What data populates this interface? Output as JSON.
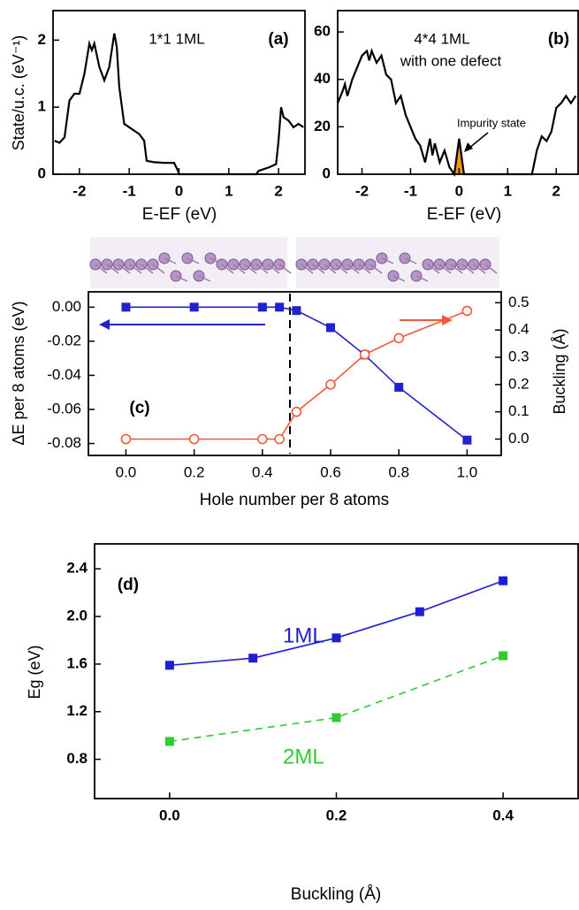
{
  "chart_data": [
    {
      "type": "line",
      "title": "1*1 1ML",
      "label": "(a)",
      "xlabel": "E-EF (eV)",
      "ylabel": "State/u.c. (eV⁻¹)",
      "xlim": [
        -2.53,
        2.53
      ],
      "ylim": [
        0,
        2.44
      ],
      "xticks": [
        -2,
        -1,
        0,
        1,
        2
      ],
      "yticks": [
        0,
        1,
        2
      ],
      "x": [
        -2.5,
        -2.4,
        -2.3,
        -2.2,
        -2.1,
        -2.0,
        -1.9,
        -1.8,
        -1.75,
        -1.7,
        -1.6,
        -1.5,
        -1.4,
        -1.3,
        -1.25,
        -1.2,
        -1.1,
        -1.0,
        -0.8,
        -0.7,
        -0.65,
        -0.5,
        -0.3,
        -0.1,
        -0.02,
        0,
        0.5,
        1.0,
        1.55,
        1.6,
        1.8,
        1.95,
        2.0,
        2.05,
        2.1,
        2.2,
        2.3,
        2.4,
        2.5
      ],
      "series": [
        {
          "color": "#000000",
          "values": [
            0.5,
            0.47,
            0.55,
            1.1,
            1.2,
            1.2,
            1.5,
            1.95,
            1.85,
            1.95,
            1.6,
            1.4,
            1.6,
            2.1,
            1.9,
            1.3,
            0.75,
            0.7,
            0.6,
            0.5,
            0.2,
            0.18,
            0.17,
            0.17,
            0.05,
            0,
            0,
            0,
            0,
            0.05,
            0.1,
            0.15,
            0.5,
            1.0,
            0.85,
            0.8,
            0.7,
            0.75,
            0.7
          ]
        }
      ]
    },
    {
      "type": "line",
      "title": "4*4 1ML",
      "subtitle": "with one defect",
      "label": "(b)",
      "annotation": "Impurity state",
      "xlabel": "E-EF (eV)",
      "xlim": [
        -2.5,
        2.45
      ],
      "ylim": [
        0,
        69
      ],
      "xticks": [
        -2,
        -1,
        0,
        1,
        2
      ],
      "yticks": [
        0,
        20,
        40,
        60
      ],
      "series": [
        {
          "color": "#f7941d",
          "fill": true,
          "x": [
            -0.1,
            0,
            0.1
          ],
          "values": [
            0,
            15,
            0
          ]
        },
        {
          "color": "#000000",
          "x": [
            -2.5,
            -2.4,
            -2.35,
            -2.3,
            -2.2,
            -2.1,
            -2.0,
            -1.9,
            -1.85,
            -1.8,
            -1.7,
            -1.6,
            -1.5,
            -1.4,
            -1.3,
            -1.2,
            -1.1,
            -1.0,
            -0.9,
            -0.8,
            -0.7,
            -0.6,
            -0.55,
            -0.5,
            -0.4,
            -0.3,
            -0.2,
            -0.1,
            0,
            0.1,
            0.2,
            1.5,
            1.6,
            1.7,
            1.8,
            1.9,
            2.0,
            2.1,
            2.2,
            2.3,
            2.4
          ],
          "values": [
            30,
            35,
            38,
            33,
            40,
            45,
            50,
            52,
            48,
            52,
            47,
            50,
            42,
            40,
            30,
            33,
            25,
            20,
            15,
            12,
            5,
            15,
            8,
            13,
            5,
            10,
            3,
            0,
            15,
            0,
            0,
            0,
            10,
            16,
            14,
            18,
            28,
            30,
            33,
            30,
            33
          ]
        }
      ]
    },
    {
      "type": "line",
      "label": "(c)",
      "xlabel": "Hole number per 8 atoms",
      "ylabel": "ΔE per 8 atoms (eV)",
      "y2label": "Buckling (Å)",
      "xlim": [
        -0.11,
        1.1
      ],
      "ylim": [
        -0.087,
        0.009
      ],
      "y2lim": [
        -0.06,
        0.54
      ],
      "xticks": [
        {
          "value": 0,
          "label": "0.0"
        },
        {
          "value": 0.2,
          "label": "0.2"
        },
        {
          "value": 0.4,
          "label": "0.4"
        },
        {
          "value": 0.6,
          "label": "0.6"
        },
        {
          "value": 0.8,
          "label": "0.8"
        },
        {
          "value": 1,
          "label": "1.0"
        }
      ],
      "yticks": [
        {
          "value": 0,
          "label": "0.00"
        },
        {
          "value": -0.02,
          "label": "-0.02"
        },
        {
          "value": -0.04,
          "label": "-0.04"
        },
        {
          "value": -0.06,
          "label": "-0.06"
        },
        {
          "value": -0.08,
          "label": "-0.08"
        }
      ],
      "y2ticks": [
        {
          "value": 0,
          "label": "0.0"
        },
        {
          "value": 0.1,
          "label": "0.1"
        },
        {
          "value": 0.2,
          "label": "0.2"
        },
        {
          "value": 0.3,
          "label": "0.3"
        },
        {
          "value": 0.4,
          "label": "0.4"
        },
        {
          "value": 0.5,
          "label": "0.5"
        }
      ],
      "x": [
        0,
        0.2,
        0.4,
        0.45,
        0.5,
        0.6,
        0.7,
        0.8,
        1.0
      ],
      "series": [
        {
          "color": "#2222cc",
          "marker": "square",
          "values": [
            0,
            0,
            0,
            0,
            -0.002,
            -0.012,
            -0.028,
            -0.047,
            -0.078
          ]
        },
        {
          "color": "#f05a3a",
          "marker": "circle",
          "axis": "y2",
          "values": [
            0,
            0,
            0,
            0,
            0.1,
            0.2,
            0.31,
            0.37,
            0.47
          ]
        }
      ]
    },
    {
      "type": "line",
      "label": "(d)",
      "xlabel": "Buckling (Å)",
      "ylabel": "Eg (eV)",
      "xlim": [
        -0.09,
        0.49
      ],
      "ylim": [
        0.47,
        2.61
      ],
      "xticks": [
        {
          "value": 0,
          "label": "0.0"
        },
        {
          "value": 0.2,
          "label": "0.2"
        },
        {
          "value": 0.4,
          "label": "0.4"
        }
      ],
      "yticks": [
        {
          "value": 0.8,
          "label": "0.8"
        },
        {
          "value": 1.2,
          "label": "1.2"
        },
        {
          "value": 1.6,
          "label": "1.6"
        },
        {
          "value": 2.0,
          "label": "2.0"
        },
        {
          "value": 2.4,
          "label": "2.4"
        }
      ],
      "series": [
        {
          "name": "1ML",
          "color": "#1e1ed2",
          "marker": "square",
          "x": [
            0,
            0.1,
            0.2,
            0.3,
            0.4
          ],
          "values": [
            1.59,
            1.65,
            1.82,
            2.04,
            2.3
          ]
        },
        {
          "name": "2ML",
          "color": "#2ecc2e",
          "marker": "square",
          "dash": true,
          "x": [
            0,
            0.2,
            0.4
          ],
          "values": [
            0.95,
            1.15,
            1.67
          ]
        }
      ]
    }
  ]
}
